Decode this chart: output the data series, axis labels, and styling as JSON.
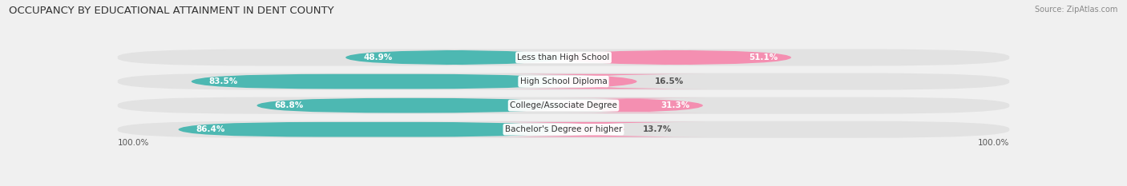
{
  "title": "OCCUPANCY BY EDUCATIONAL ATTAINMENT IN DENT COUNTY",
  "source": "Source: ZipAtlas.com",
  "categories": [
    "Less than High School",
    "High School Diploma",
    "College/Associate Degree",
    "Bachelor's Degree or higher"
  ],
  "owner_pct": [
    48.9,
    83.5,
    68.8,
    86.4
  ],
  "renter_pct": [
    51.1,
    16.5,
    31.3,
    13.7
  ],
  "owner_color": "#4db8b2",
  "renter_color": "#f48fb1",
  "bg_color": "#f0f0f0",
  "bar_bg_color": "#e2e2e2",
  "title_fontsize": 9.5,
  "source_fontsize": 7,
  "label_fontsize": 7.5,
  "pct_fontsize": 7.5,
  "axis_label_fontsize": 7.5,
  "legend_fontsize": 7.5,
  "x_left_label": "100.0%",
  "x_right_label": "100.0%"
}
